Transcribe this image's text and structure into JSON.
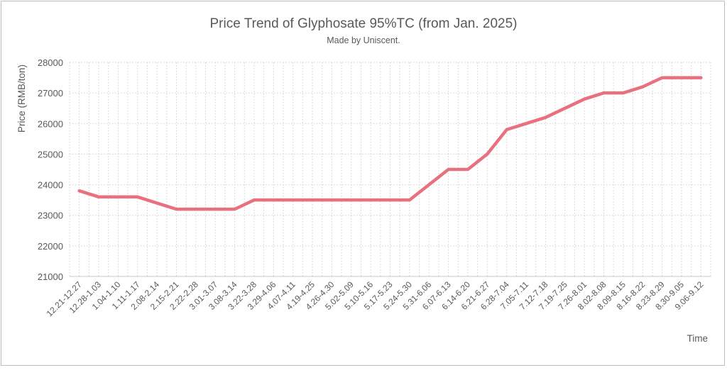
{
  "chart_data": {
    "type": "line",
    "title": "Price Trend of Glyphosate 95%TC (from Jan. 2025)",
    "subtitle": "Made by Uniscent.",
    "xlabel": "Time",
    "ylabel": "Price (RMB/ton)",
    "ylim": [
      21000,
      28000
    ],
    "yticks": [
      21000,
      22000,
      23000,
      24000,
      25000,
      26000,
      27000,
      28000
    ],
    "grid": true,
    "line_color": "#e8707f",
    "categories": [
      "12.21-12.27",
      "12.28-1.03",
      "1.04-1.10",
      "1.11-1.17",
      "2.08-2.14",
      "2.15-2.21",
      "2.22-2.28",
      "3.01-3.07",
      "3.08-3.14",
      "3.22-3.28",
      "3.29-4.06",
      "4.07-4.11",
      "4.19-4.25",
      "4.26-4.30",
      "5.02-5.09",
      "5.10-5.16",
      "5.17-5.23",
      "5.24-5.30",
      "5.31-6.06",
      "6.07-6.13",
      "6.14-6.20",
      "6.21-6.27",
      "6.28-7.04",
      "7.05-7.11",
      "7.12-7.18",
      "7.19-7.25",
      "7.26-8.01",
      "8.02-8.08",
      "8.09-8.15",
      "8.16-8.22",
      "8.23-8.29",
      "8.30-9.05",
      "9.06-9.12"
    ],
    "values": [
      23800,
      23600,
      23600,
      23600,
      23400,
      23200,
      23200,
      23200,
      23200,
      23500,
      23500,
      23500,
      23500,
      23500,
      23500,
      23500,
      23500,
      23500,
      24000,
      24500,
      24500,
      25000,
      25800,
      26000,
      26200,
      26500,
      26800,
      27000,
      27000,
      27200,
      27500,
      27500,
      27500
    ]
  }
}
